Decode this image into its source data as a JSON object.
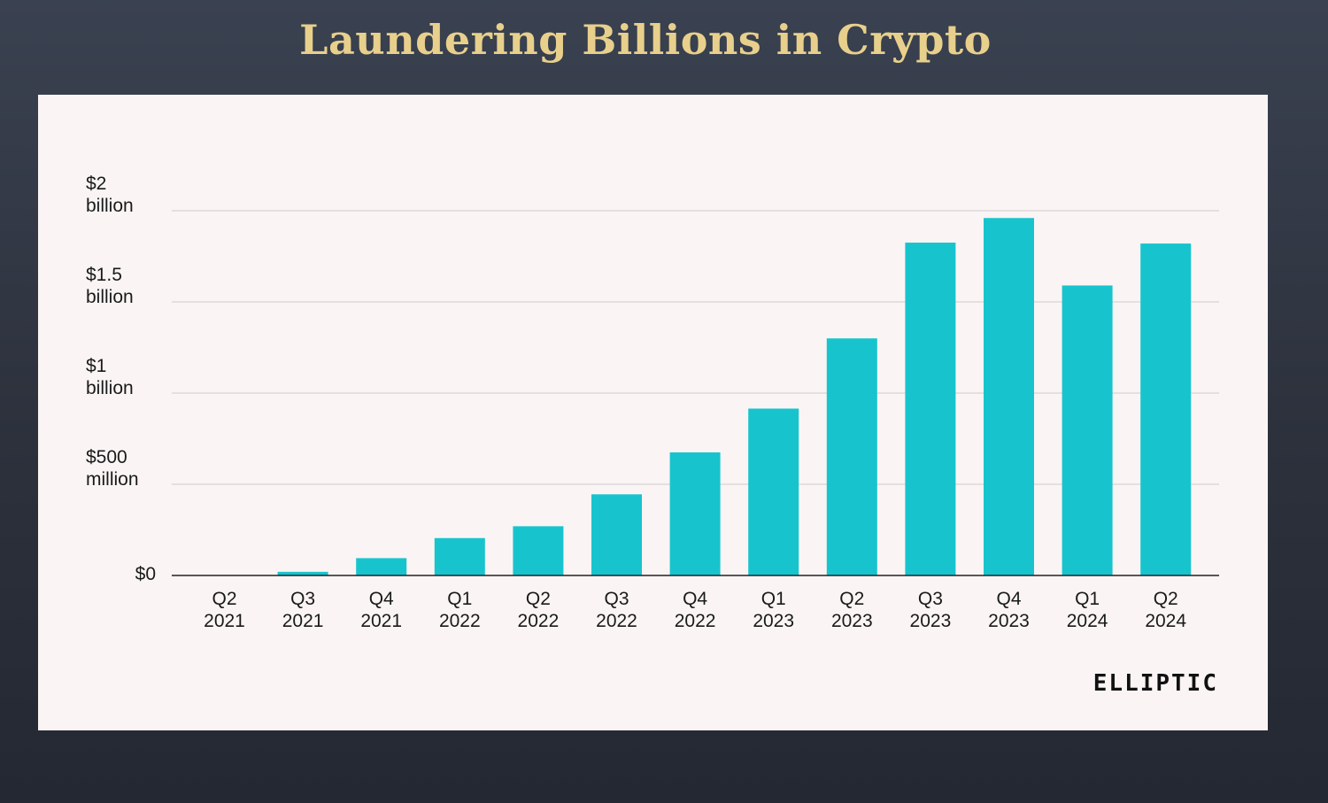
{
  "title": "Laundering Billions in Crypto",
  "logo": "ELLIPTIC",
  "colors": {
    "bar": "#17c4ce",
    "grid": "#d8d4d4",
    "axis": "#222222",
    "title": "#e8d08c",
    "panel": "#faf5f4"
  },
  "chart_data": {
    "type": "bar",
    "title": "",
    "xlabel": "",
    "ylabel": "",
    "ylim": [
      0,
      2000
    ],
    "grid": true,
    "yticks": [
      {
        "value": 0,
        "label": [
          "$0"
        ]
      },
      {
        "value": 500,
        "label": [
          "$500",
          "million"
        ]
      },
      {
        "value": 1000,
        "label": [
          "$1",
          "billion"
        ]
      },
      {
        "value": 1500,
        "label": [
          "$1.5",
          "billion"
        ]
      },
      {
        "value": 2000,
        "label": [
          "$2",
          "billion"
        ]
      }
    ],
    "categories": [
      [
        "Q2",
        "2021"
      ],
      [
        "Q3",
        "2021"
      ],
      [
        "Q4",
        "2021"
      ],
      [
        "Q1",
        "2022"
      ],
      [
        "Q2",
        "2022"
      ],
      [
        "Q3",
        "2022"
      ],
      [
        "Q4",
        "2022"
      ],
      [
        "Q1",
        "2023"
      ],
      [
        "Q2",
        "2023"
      ],
      [
        "Q3",
        "2023"
      ],
      [
        "Q4",
        "2023"
      ],
      [
        "Q1",
        "2024"
      ],
      [
        "Q2",
        "2024"
      ]
    ],
    "values": [
      2,
      20,
      95,
      205,
      270,
      445,
      675,
      915,
      1300,
      1825,
      1960,
      1590,
      1820
    ]
  }
}
